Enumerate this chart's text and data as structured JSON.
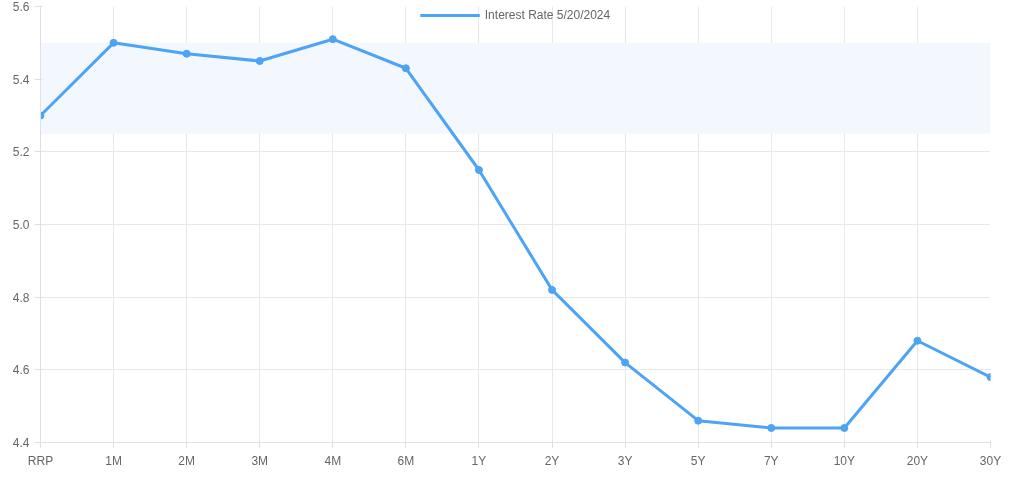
{
  "chart_data": {
    "type": "line",
    "categories": [
      "RRP",
      "1M",
      "2M",
      "3M",
      "4M",
      "6M",
      "1Y",
      "2Y",
      "3Y",
      "5Y",
      "7Y",
      "10Y",
      "20Y",
      "30Y"
    ],
    "series": [
      {
        "name": "Interest Rate 5/20/2024",
        "color": "#4da3f5",
        "values": [
          5.3,
          5.5,
          5.47,
          5.45,
          5.51,
          5.43,
          5.15,
          4.82,
          4.62,
          4.46,
          4.44,
          4.44,
          4.68,
          4.58
        ]
      }
    ],
    "ylim": [
      4.4,
      5.6
    ],
    "yticks": [
      4.4,
      4.6,
      4.8,
      {
        "value": 5.0,
        "label": "5.0"
      },
      5.2,
      5.4,
      5.6
    ],
    "bands": [
      {
        "axis": "y",
        "from": 5.25,
        "to": 5.5,
        "color": "#f3f8fe"
      }
    ],
    "grid": true,
    "legend": "top",
    "marker": "circle",
    "line_style": "solid"
  }
}
